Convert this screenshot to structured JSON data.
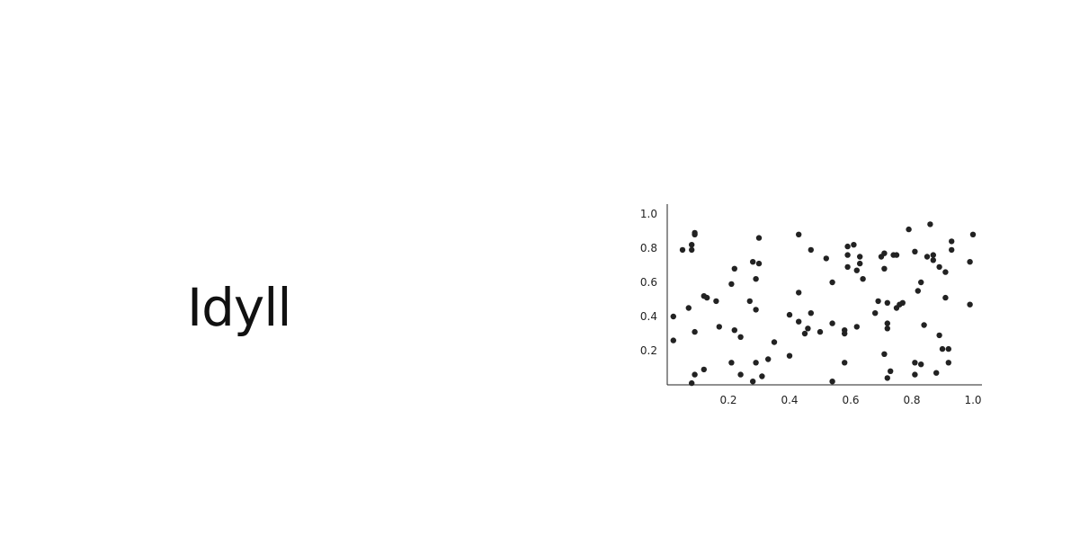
{
  "slide": {
    "title": "Idyll"
  },
  "colors": {
    "background": "#ffffff",
    "text": "#111111",
    "axis": "#222222",
    "point": "#222222"
  },
  "chart_data": {
    "type": "scatter",
    "title": "",
    "xlabel": "",
    "ylabel": "",
    "xlim": [
      0,
      1.0
    ],
    "ylim": [
      0,
      1.0
    ],
    "xticks": [
      "0.2",
      "0.4",
      "0.6",
      "0.8",
      "1.0"
    ],
    "yticks": [
      "0.2",
      "0.4",
      "0.6",
      "0.8",
      "1.0"
    ],
    "grid": false,
    "series": [
      {
        "points": [
          [
            0.02,
            0.4
          ],
          [
            0.02,
            0.26
          ],
          [
            0.05,
            0.79
          ],
          [
            0.07,
            0.45
          ],
          [
            0.08,
            0.82
          ],
          [
            0.08,
            0.79
          ],
          [
            0.09,
            0.88
          ],
          [
            0.09,
            0.89
          ],
          [
            0.09,
            0.31
          ],
          [
            0.09,
            0.06
          ],
          [
            0.08,
            0.01
          ],
          [
            0.12,
            0.09
          ],
          [
            0.12,
            0.52
          ],
          [
            0.13,
            0.51
          ],
          [
            0.16,
            0.49
          ],
          [
            0.17,
            0.34
          ],
          [
            0.21,
            0.59
          ],
          [
            0.22,
            0.68
          ],
          [
            0.22,
            0.32
          ],
          [
            0.21,
            0.13
          ],
          [
            0.24,
            0.28
          ],
          [
            0.24,
            0.06
          ],
          [
            0.27,
            0.49
          ],
          [
            0.28,
            0.72
          ],
          [
            0.29,
            0.44
          ],
          [
            0.29,
            0.62
          ],
          [
            0.3,
            0.71
          ],
          [
            0.3,
            0.86
          ],
          [
            0.29,
            0.13
          ],
          [
            0.28,
            0.02
          ],
          [
            0.31,
            0.05
          ],
          [
            0.33,
            0.15
          ],
          [
            0.35,
            0.25
          ],
          [
            0.4,
            0.41
          ],
          [
            0.4,
            0.17
          ],
          [
            0.43,
            0.88
          ],
          [
            0.43,
            0.54
          ],
          [
            0.43,
            0.37
          ],
          [
            0.45,
            0.3
          ],
          [
            0.46,
            0.33
          ],
          [
            0.47,
            0.79
          ],
          [
            0.47,
            0.42
          ],
          [
            0.5,
            0.31
          ],
          [
            0.52,
            0.74
          ],
          [
            0.54,
            0.6
          ],
          [
            0.54,
            0.36
          ],
          [
            0.54,
            0.02
          ],
          [
            0.58,
            0.13
          ],
          [
            0.58,
            0.32
          ],
          [
            0.59,
            0.81
          ],
          [
            0.59,
            0.76
          ],
          [
            0.59,
            0.69
          ],
          [
            0.58,
            0.3
          ],
          [
            0.61,
            0.82
          ],
          [
            0.62,
            0.67
          ],
          [
            0.63,
            0.75
          ],
          [
            0.63,
            0.71
          ],
          [
            0.64,
            0.62
          ],
          [
            0.62,
            0.34
          ],
          [
            0.68,
            0.42
          ],
          [
            0.69,
            0.49
          ],
          [
            0.7,
            0.75
          ],
          [
            0.71,
            0.77
          ],
          [
            0.71,
            0.68
          ],
          [
            0.71,
            0.18
          ],
          [
            0.72,
            0.36
          ],
          [
            0.72,
            0.33
          ],
          [
            0.72,
            0.48
          ],
          [
            0.72,
            0.04
          ],
          [
            0.73,
            0.08
          ],
          [
            0.74,
            0.76
          ],
          [
            0.75,
            0.76
          ],
          [
            0.75,
            0.45
          ],
          [
            0.76,
            0.47
          ],
          [
            0.77,
            0.48
          ],
          [
            0.79,
            0.91
          ],
          [
            0.81,
            0.78
          ],
          [
            0.81,
            0.13
          ],
          [
            0.81,
            0.06
          ],
          [
            0.82,
            0.55
          ],
          [
            0.83,
            0.6
          ],
          [
            0.83,
            0.12
          ],
          [
            0.84,
            0.35
          ],
          [
            0.85,
            0.75
          ],
          [
            0.86,
            0.94
          ],
          [
            0.87,
            0.76
          ],
          [
            0.87,
            0.73
          ],
          [
            0.88,
            0.07
          ],
          [
            0.89,
            0.69
          ],
          [
            0.89,
            0.29
          ],
          [
            0.9,
            0.21
          ],
          [
            0.91,
            0.66
          ],
          [
            0.91,
            0.51
          ],
          [
            0.92,
            0.13
          ],
          [
            0.92,
            0.21
          ],
          [
            0.93,
            0.79
          ],
          [
            0.93,
            0.84
          ],
          [
            0.99,
            0.72
          ],
          [
            0.99,
            0.47
          ],
          [
            1.0,
            0.88
          ]
        ]
      }
    ]
  }
}
